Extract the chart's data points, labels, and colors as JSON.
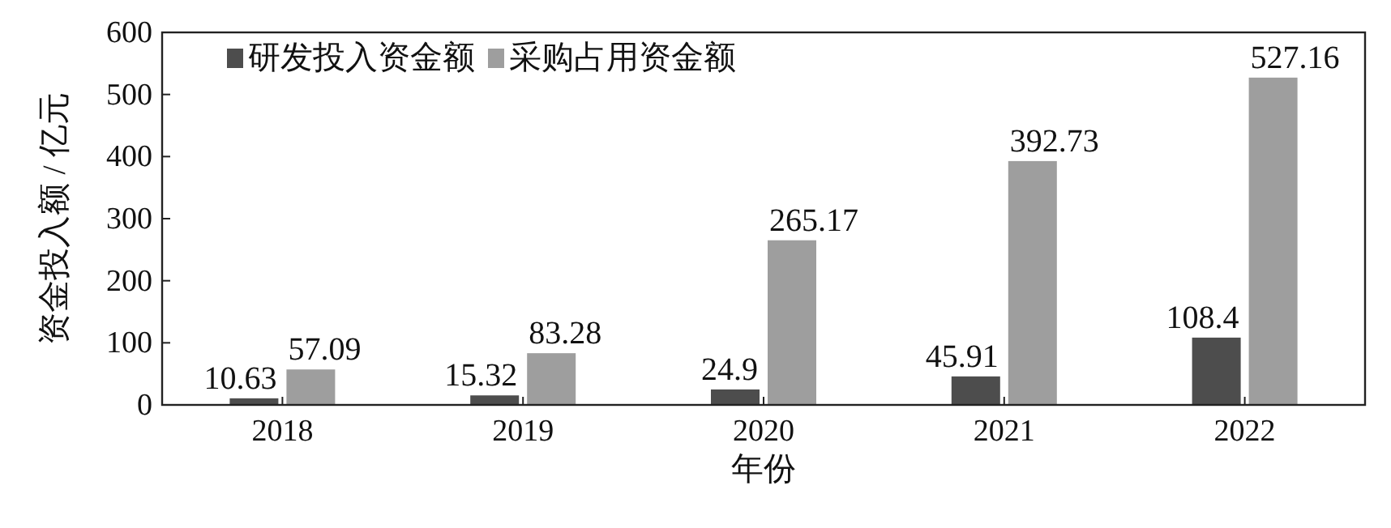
{
  "chart_data": {
    "type": "bar",
    "categories": [
      "2018",
      "2019",
      "2020",
      "2021",
      "2022"
    ],
    "series": [
      {
        "name": "研发投入资金额",
        "color": "#4d4d4d",
        "values": [
          10.63,
          15.32,
          24.9,
          45.91,
          108.4
        ]
      },
      {
        "name": "采购占用资金额",
        "color": "#9e9e9e",
        "values": [
          57.09,
          83.28,
          265.17,
          392.73,
          527.16
        ]
      }
    ],
    "xlabel": "年份",
    "ylabel": "资金投入额 / 亿元",
    "ylim": [
      0,
      600
    ],
    "yticks": [
      0,
      100,
      200,
      300,
      400,
      500,
      600
    ],
    "data_labels": true,
    "legend": "top left"
  }
}
